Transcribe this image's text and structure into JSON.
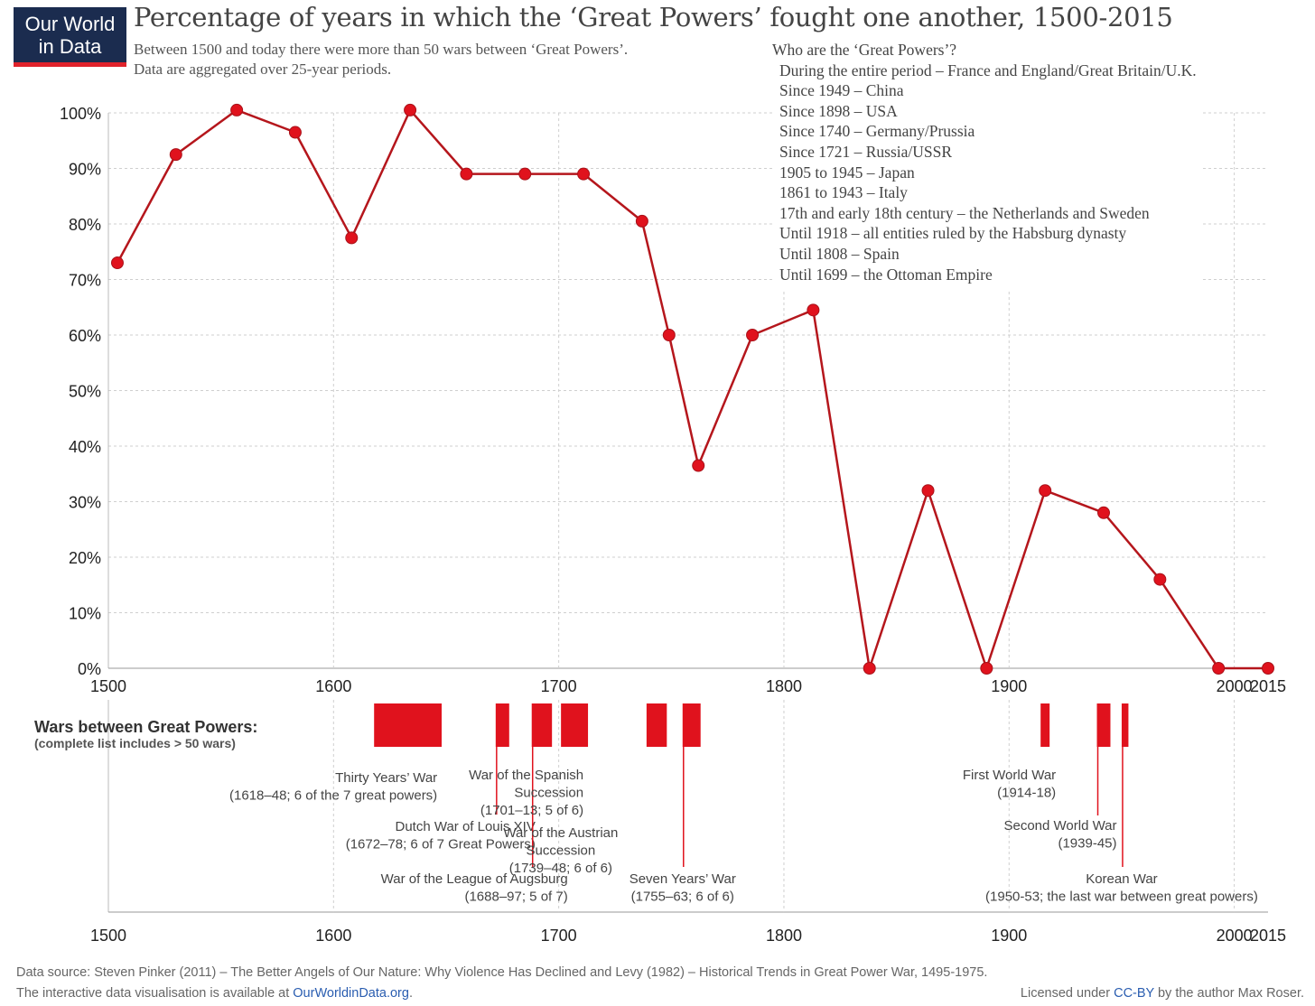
{
  "logo": {
    "line1": "Our World",
    "line2": "in Data"
  },
  "title": "Percentage of years in which the ‘Great Powers’ fought one another, 1500-2015",
  "subtitle": {
    "line1": "Between 1500 and today there were more than 50 wars between ‘Great Powers’.",
    "line2": "Data are aggregated over 25-year periods."
  },
  "great_powers": {
    "heading": "Who are the ‘Great Powers’?",
    "items": [
      "During the entire period – France and England/Great Britain/U.K.",
      "Since 1949 – China",
      "Since 1898 – USA",
      "Since 1740 – Germany/Prussia",
      "Since 1721 – Russia/USSR",
      "1905 to 1945 – Japan",
      "1861 to 1943 – Italy",
      "17th and early 18th century – the Netherlands and Sweden",
      "Until 1918 – all entities ruled by the Habsburg dynasty",
      "Until 1808 – Spain",
      "Until 1699 – the Ottoman Empire"
    ]
  },
  "chart_data": {
    "type": "line",
    "title": "Percentage of years in which the ‘Great Powers’ fought one another, 1500-2015",
    "x_ticks": [
      "1500",
      "1600",
      "1700",
      "1800",
      "1900",
      "2000",
      "2015"
    ],
    "y_ticks": [
      "0%",
      "10%",
      "20%",
      "30%",
      "40%",
      "50%",
      "60%",
      "70%",
      "80%",
      "90%",
      "100%"
    ],
    "xlim": [
      1500,
      2015
    ],
    "ylim": [
      0,
      100
    ],
    "grid": true,
    "series": [
      {
        "color": "#b5161c",
        "marker_color": "#e0121d",
        "points": [
          [
            1504,
            73
          ],
          [
            1530,
            92.5
          ],
          [
            1557,
            100.5
          ],
          [
            1583,
            96.5
          ],
          [
            1608,
            77.5
          ],
          [
            1634,
            100.5
          ],
          [
            1659,
            89
          ],
          [
            1685,
            89
          ],
          [
            1711,
            89
          ],
          [
            1737,
            80.5
          ],
          [
            1749,
            60
          ],
          [
            1762,
            36.5
          ],
          [
            1786,
            60
          ],
          [
            1813,
            64.5
          ],
          [
            1838,
            0
          ],
          [
            1864,
            32
          ],
          [
            1890,
            0
          ],
          [
            1916,
            32
          ],
          [
            1942,
            28
          ],
          [
            1967,
            16
          ],
          [
            1993,
            0
          ],
          [
            2015,
            0
          ]
        ]
      }
    ]
  },
  "wars_panel": {
    "title": "Wars between Great Powers:",
    "subtitle": "(complete list includes > 50 wars)",
    "x_ticks": [
      "1500",
      "1600",
      "1700",
      "1800",
      "1900",
      "2000",
      "2015"
    ],
    "bar_color": "#e0121d",
    "wars": [
      {
        "start": 1618,
        "end": 1648,
        "lines": [
          "Thirty Years’ War",
          "(1618–48; 6 of the 7 great powers)"
        ],
        "anchor": "end"
      },
      {
        "start": 1672,
        "end": 1678,
        "lines": [
          "Dutch War of Louis XIV",
          "(1672–78; 6 of 7 Great Powers)"
        ],
        "anchor": "end"
      },
      {
        "start": 1688,
        "end": 1697,
        "lines": [
          "War of the League of Augsburg",
          "(1688–97; 5 of 7)"
        ],
        "anchor": "end"
      },
      {
        "start": 1701,
        "end": 1713,
        "lines": [
          "War of the Spanish",
          "Succession",
          "(1701–13; 5 of 6)"
        ],
        "anchor": "end"
      },
      {
        "start": 1739,
        "end": 1748,
        "lines": [
          "War of the Austrian",
          "Succession",
          "(1739–48; 6 of 6)"
        ],
        "anchor": "middle"
      },
      {
        "start": 1755,
        "end": 1763,
        "lines": [
          "Seven Years’ War",
          "(1755–63; 6 of 6)"
        ],
        "anchor": "middle"
      },
      {
        "start": 1914,
        "end": 1918,
        "lines": [
          "First World War",
          "(1914-18)"
        ],
        "anchor": "end"
      },
      {
        "start": 1939,
        "end": 1945,
        "lines": [
          "Second World War",
          "(1939-45)"
        ],
        "anchor": "end"
      },
      {
        "start": 1950,
        "end": 1953,
        "lines": [
          "Korean War",
          "(1950-53; the last war between great powers)"
        ],
        "anchor": "middle"
      }
    ]
  },
  "footer": {
    "source": "Data source: Steven Pinker (2011) – The Better Angels of Our Nature: Why Violence Has Declined and Levy (1982) – Historical Trends in Great Power War, 1495-1975.",
    "interactive_prefix": "The interactive data visualisation is available at ",
    "interactive_link": "OurWorldinData.org",
    "interactive_suffix": ".",
    "license_prefix": "Licensed under ",
    "license_link": "CC-BY",
    "license_suffix": " by the author Max Roser."
  }
}
